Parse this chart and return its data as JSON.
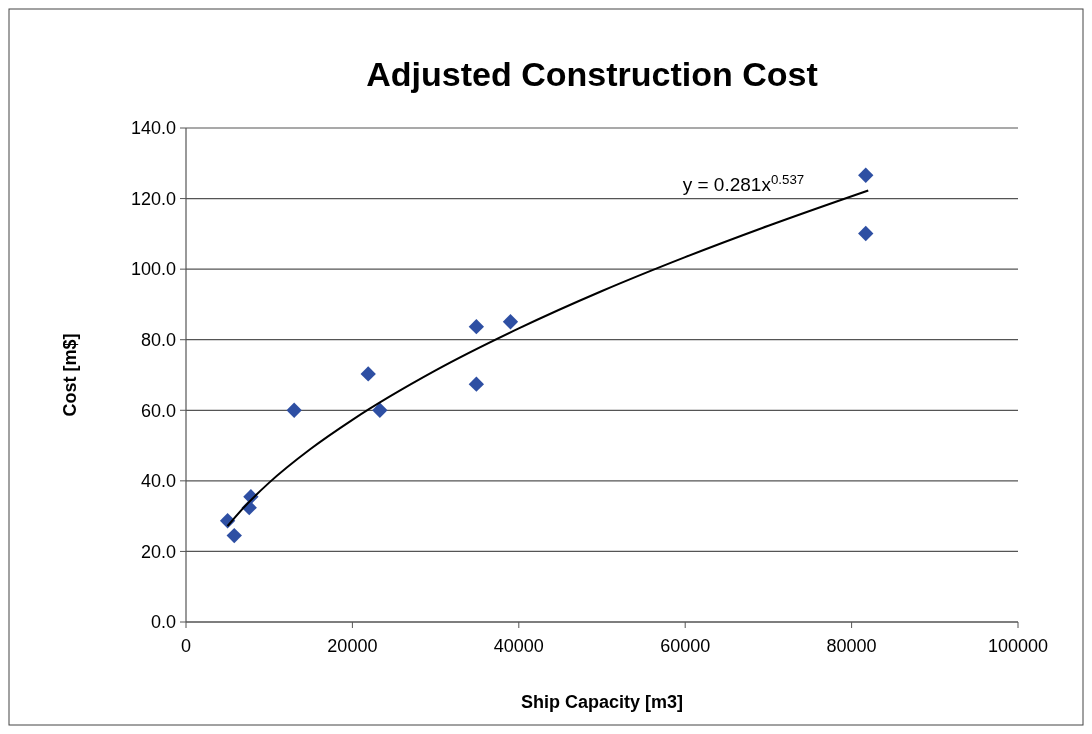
{
  "chart_data": {
    "type": "scatter",
    "title": "Adjusted Construction Cost",
    "xlabel": "Ship Capacity [m3]",
    "ylabel": "Cost [m$]",
    "xlim": [
      0,
      100000
    ],
    "xticks": [
      0,
      20000,
      40000,
      60000,
      80000,
      100000
    ],
    "ylim": [
      0,
      140
    ],
    "yticks": [
      {
        "value": 0,
        "label": "0.0"
      },
      {
        "value": 20,
        "label": "20.0"
      },
      {
        "value": 40,
        "label": "40.0"
      },
      {
        "value": 60,
        "label": "60.0"
      },
      {
        "value": 80,
        "label": "80.0"
      },
      {
        "value": 100,
        "label": "100.0"
      },
      {
        "value": 120,
        "label": "120.0"
      },
      {
        "value": 140,
        "label": "140.0"
      }
    ],
    "grid": "y",
    "marker": "diamond",
    "series": [
      {
        "color": "#2e4fa3",
        "x": [
          5000,
          5800,
          7600,
          7800,
          13000,
          21900,
          23300,
          34900,
          34900,
          39000,
          81700,
          81700
        ],
        "values": [
          28.7,
          24.5,
          32.4,
          35.5,
          60,
          70.3,
          60,
          83.7,
          67.4,
          85.1,
          126.6,
          110.1
        ]
      },
      {
        "type": "line",
        "color": "#000000",
        "marker": "none",
        "x": [
          5000,
          7000,
          10000,
          15000,
          20000,
          30000,
          40000,
          50000,
          60000,
          70000,
          82000
        ],
        "values": [
          27.2,
          32.6,
          39.5,
          49.1,
          57.3,
          71.3,
          83.2,
          93.8,
          103.4,
          112.3,
          122.3
        ]
      }
    ],
    "annotations": [
      "y = 0.281x$^{0.537}$"
    ]
  }
}
